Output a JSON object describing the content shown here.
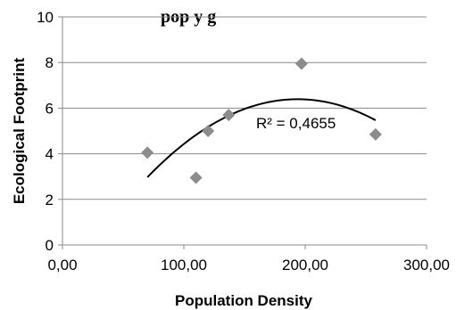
{
  "chart_data": {
    "type": "scatter",
    "title": "g",
    "title_visible_text": "   pop      y   g",
    "xlabel": "Population Density",
    "ylabel": "Ecological Footprint",
    "xlim": [
      0,
      300
    ],
    "ylim": [
      0,
      10
    ],
    "x_ticks": [
      "0,00",
      "100,00",
      "200,00",
      "300,00"
    ],
    "y_ticks": [
      "0",
      "2",
      "4",
      "6",
      "8",
      "10"
    ],
    "grid": "horizontal",
    "marker_color": "#8c8c8c",
    "points": [
      {
        "x": 70,
        "y": 4.05
      },
      {
        "x": 110,
        "y": 2.95
      },
      {
        "x": 120,
        "y": 5.0
      },
      {
        "x": 137,
        "y": 5.7
      },
      {
        "x": 197,
        "y": 7.95
      },
      {
        "x": 258,
        "y": 4.85
      }
    ],
    "trendline": {
      "type": "polynomial-2",
      "x_range": [
        70,
        258
      ],
      "annotation": "R² = 0,4655"
    }
  }
}
